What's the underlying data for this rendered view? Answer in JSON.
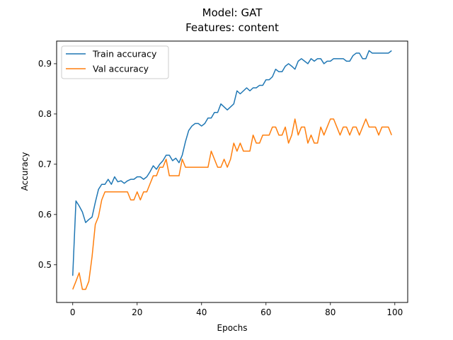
{
  "chart_data": {
    "type": "line",
    "title": "Model: GAT",
    "subtitle": "Features: content",
    "xlabel": "Epochs",
    "ylabel": "Accuracy",
    "xlim": [
      -5,
      104
    ],
    "ylim": [
      0.425,
      0.945
    ],
    "xticks": [
      0,
      20,
      40,
      60,
      80,
      100
    ],
    "yticks": [
      0.5,
      0.6,
      0.7,
      0.8,
      0.9
    ],
    "grid": false,
    "legend": "top-left",
    "series": [
      {
        "name": "Train accuracy",
        "color": "#1f77b4",
        "values": [
          0.478,
          0.627,
          0.617,
          0.605,
          0.584,
          0.59,
          0.595,
          0.624,
          0.65,
          0.66,
          0.66,
          0.67,
          0.66,
          0.675,
          0.665,
          0.667,
          0.662,
          0.667,
          0.67,
          0.67,
          0.675,
          0.675,
          0.67,
          0.675,
          0.685,
          0.697,
          0.69,
          0.7,
          0.707,
          0.718,
          0.718,
          0.707,
          0.712,
          0.703,
          0.718,
          0.745,
          0.767,
          0.776,
          0.781,
          0.781,
          0.776,
          0.781,
          0.792,
          0.792,
          0.803,
          0.803,
          0.82,
          0.814,
          0.808,
          0.814,
          0.82,
          0.846,
          0.84,
          0.846,
          0.852,
          0.846,
          0.852,
          0.852,
          0.857,
          0.857,
          0.868,
          0.868,
          0.874,
          0.889,
          0.884,
          0.884,
          0.895,
          0.9,
          0.895,
          0.889,
          0.905,
          0.91,
          0.905,
          0.9,
          0.91,
          0.905,
          0.91,
          0.91,
          0.9,
          0.905,
          0.905,
          0.91,
          0.91,
          0.91,
          0.91,
          0.905,
          0.905,
          0.916,
          0.921,
          0.921,
          0.91,
          0.91,
          0.926,
          0.921,
          0.921,
          0.921,
          0.921,
          0.921,
          0.921,
          0.926
        ]
      },
      {
        "name": "Val accuracy",
        "color": "#ff7f0e",
        "values": [
          0.451,
          0.467,
          0.484,
          0.451,
          0.451,
          0.467,
          0.516,
          0.58,
          0.596,
          0.629,
          0.645,
          0.645,
          0.645,
          0.645,
          0.645,
          0.645,
          0.645,
          0.645,
          0.629,
          0.629,
          0.645,
          0.629,
          0.645,
          0.645,
          0.661,
          0.677,
          0.677,
          0.694,
          0.694,
          0.71,
          0.677,
          0.677,
          0.677,
          0.677,
          0.71,
          0.694,
          0.694,
          0.694,
          0.694,
          0.694,
          0.694,
          0.694,
          0.694,
          0.726,
          0.71,
          0.694,
          0.694,
          0.71,
          0.694,
          0.71,
          0.742,
          0.726,
          0.742,
          0.726,
          0.726,
          0.726,
          0.758,
          0.742,
          0.742,
          0.758,
          0.758,
          0.758,
          0.774,
          0.774,
          0.758,
          0.758,
          0.774,
          0.742,
          0.758,
          0.79,
          0.758,
          0.774,
          0.774,
          0.742,
          0.758,
          0.742,
          0.742,
          0.774,
          0.758,
          0.774,
          0.79,
          0.79,
          0.774,
          0.758,
          0.774,
          0.774,
          0.758,
          0.774,
          0.774,
          0.758,
          0.774,
          0.79,
          0.774,
          0.774,
          0.774,
          0.758,
          0.774,
          0.774,
          0.774,
          0.758
        ]
      }
    ]
  }
}
